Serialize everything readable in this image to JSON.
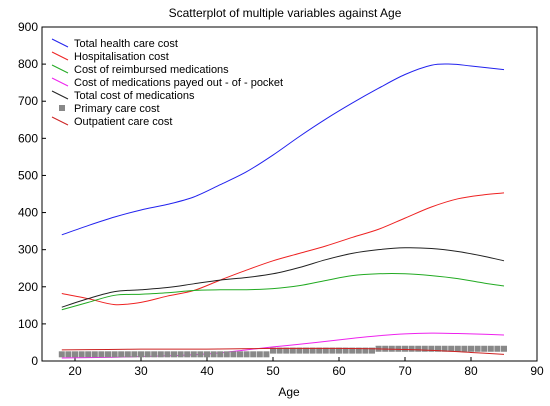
{
  "chart_data": {
    "type": "line",
    "title": "Scatterplot of multiple variables against Age",
    "xlabel": "Age",
    "ylabel": "",
    "xlim": [
      15,
      90
    ],
    "ylim": [
      0,
      900
    ],
    "xticks": [
      20,
      30,
      40,
      50,
      60,
      70,
      80,
      90
    ],
    "yticks": [
      0,
      100,
      200,
      300,
      400,
      500,
      600,
      700,
      800,
      900
    ],
    "grid": false,
    "legend_position": "top-left",
    "series": [
      {
        "name": "Total health care cost",
        "color": "#2222ee",
        "style": "line",
        "x": [
          18,
          22,
          26,
          30,
          34,
          38,
          42,
          46,
          50,
          54,
          58,
          62,
          66,
          70,
          74,
          77,
          80,
          85
        ],
        "y": [
          340,
          365,
          388,
          407,
          422,
          442,
          475,
          510,
          555,
          605,
          652,
          695,
          735,
          772,
          797,
          800,
          795,
          785
        ]
      },
      {
        "name": "Hospitalisation cost",
        "color": "#ee2222",
        "style": "line",
        "x": [
          18,
          22,
          26,
          30,
          34,
          38,
          42,
          46,
          50,
          54,
          58,
          62,
          66,
          70,
          74,
          78,
          82,
          85
        ],
        "y": [
          182,
          168,
          152,
          158,
          175,
          190,
          218,
          245,
          270,
          290,
          310,
          333,
          355,
          385,
          415,
          437,
          448,
          453
        ]
      },
      {
        "name": "Cost of reimbursed medications",
        "color": "#22aa22",
        "style": "line",
        "x": [
          18,
          22,
          26,
          30,
          34,
          38,
          42,
          46,
          50,
          54,
          58,
          62,
          66,
          70,
          74,
          78,
          82,
          85
        ],
        "y": [
          138,
          158,
          177,
          180,
          184,
          190,
          192,
          192,
          195,
          203,
          217,
          230,
          235,
          235,
          230,
          222,
          210,
          202
        ]
      },
      {
        "name": "Cost of medications payed out - of - pocket",
        "color": "#ee22ee",
        "style": "line",
        "x": [
          18,
          22,
          26,
          30,
          34,
          38,
          42,
          46,
          50,
          54,
          58,
          62,
          66,
          70,
          74,
          78,
          82,
          85
        ],
        "y": [
          8,
          9,
          10,
          12,
          14,
          17,
          22,
          30,
          38,
          45,
          53,
          61,
          68,
          73,
          75,
          74,
          72,
          70
        ]
      },
      {
        "name": "Total cost of medications",
        "color": "#222222",
        "style": "line",
        "x": [
          18,
          22,
          26,
          30,
          34,
          38,
          42,
          46,
          50,
          54,
          58,
          62,
          66,
          70,
          74,
          78,
          82,
          85
        ],
        "y": [
          145,
          168,
          187,
          192,
          198,
          208,
          218,
          225,
          235,
          252,
          273,
          290,
          300,
          305,
          303,
          295,
          282,
          270
        ]
      },
      {
        "name": "Primary care cost",
        "color": "#888888",
        "style": "square",
        "x": [
          18,
          19,
          20,
          21,
          22,
          23,
          24,
          25,
          26,
          27,
          28,
          29,
          30,
          31,
          32,
          33,
          34,
          35,
          36,
          37,
          38,
          39,
          40,
          41,
          42,
          43,
          44,
          45,
          46,
          47,
          48,
          49,
          50,
          51,
          52,
          53,
          54,
          55,
          56,
          57,
          58,
          59,
          60,
          61,
          62,
          63,
          64,
          65,
          66,
          67,
          68,
          69,
          70,
          71,
          72,
          73,
          74,
          75,
          76,
          77,
          78,
          79,
          80,
          81,
          82,
          83,
          84,
          85
        ],
        "y": [
          18,
          18,
          18,
          18,
          18,
          18,
          18,
          18,
          18,
          18,
          18,
          18,
          18,
          18,
          18,
          18,
          18,
          18,
          18,
          18,
          18,
          18,
          18,
          18,
          18,
          18,
          18,
          18,
          18,
          18,
          18,
          18,
          28,
          28,
          28,
          28,
          28,
          28,
          28,
          28,
          28,
          28,
          28,
          28,
          28,
          28,
          28,
          28,
          33,
          33,
          33,
          33,
          33,
          33,
          33,
          33,
          33,
          33,
          33,
          33,
          33,
          33,
          33,
          33,
          33,
          33,
          33,
          33
        ]
      },
      {
        "name": "Outpatient care cost",
        "color": "#cc2222",
        "style": "line",
        "x": [
          18,
          25,
          30,
          35,
          40,
          45,
          50,
          55,
          60,
          65,
          70,
          75,
          80,
          85
        ],
        "y": [
          30,
          31,
          32,
          32,
          32,
          33,
          34,
          34,
          34,
          33,
          31,
          28,
          23,
          18
        ]
      }
    ]
  }
}
